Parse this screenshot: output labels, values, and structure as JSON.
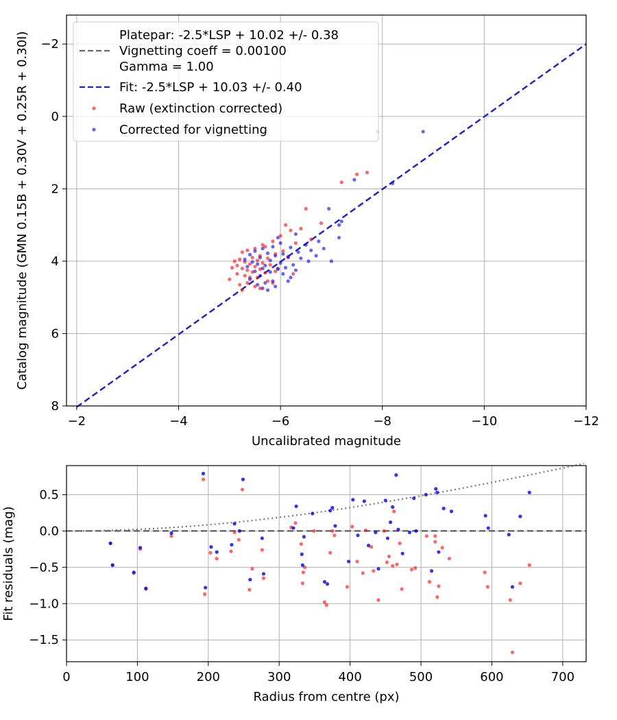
{
  "colors": {
    "raw": "#ff0000",
    "corrected": "#0000ee",
    "fit": "#2222cc",
    "vignetting": "#666666",
    "model": "#777777",
    "grid": "#b0b0b0"
  },
  "chart_data": [
    {
      "type": "scatter",
      "title": "",
      "xlabel": "Uncalibrated magnitude",
      "ylabel": "Catalog magnitude (GMN 0.15B + 0.30V + 0.25R + 0.30I)",
      "xlim": [
        -1.8,
        -12
      ],
      "ylim": [
        8,
        -2.8
      ],
      "xticks": [
        -2,
        -4,
        -6,
        -8,
        -10,
        -12
      ],
      "xtick_labels": [
        "−2",
        "−4",
        "−6",
        "−8",
        "−10",
        "−12"
      ],
      "yticks": [
        -2,
        0,
        2,
        4,
        6,
        8
      ],
      "ytick_labels": [
        "−2",
        "0",
        "2",
        "4",
        "6",
        "8"
      ],
      "grid": true,
      "legend": {
        "position": "top-left",
        "entries": [
          {
            "label": "Platepar: -2.5*LSP + 10.02 +/- 0.38",
            "style": "none"
          },
          {
            "label": "Vignetting coeff = 0.00100",
            "style": "dashed-gray"
          },
          {
            "label": "Gamma = 1.00",
            "style": "none"
          },
          {
            "label": "Fit: -2.5*LSP + 10.03 +/- 0.40",
            "style": "dashed-blue"
          },
          {
            "label": "Raw (extinction corrected)",
            "style": "dot-red"
          },
          {
            "label": "Corrected for vignetting",
            "style": "dot-blue"
          }
        ]
      },
      "lines": [
        {
          "name": "Fit: -2.5*LSP + 10.03 +/- 0.40",
          "x": [
            -2.0,
            -12.0
          ],
          "y": [
            8.03,
            -2.0
          ]
        }
      ],
      "series": [
        {
          "name": "Raw (extinction corrected)",
          "points": [
            [
              -7.9,
              0.42
            ],
            [
              -7.7,
              1.55
            ],
            [
              -7.5,
              1.6
            ],
            [
              -7.2,
              1.82
            ],
            [
              -6.5,
              2.55
            ],
            [
              -6.8,
              2.95
            ],
            [
              -6.1,
              3.0
            ],
            [
              -6.4,
              3.1
            ],
            [
              -6.2,
              3.15
            ],
            [
              -6.0,
              3.3
            ],
            [
              -6.6,
              3.4
            ],
            [
              -5.85,
              3.45
            ],
            [
              -6.3,
              3.5
            ],
            [
              -5.7,
              3.6
            ],
            [
              -5.5,
              3.65
            ],
            [
              -5.35,
              3.7
            ],
            [
              -6.05,
              3.72
            ],
            [
              -5.25,
              3.75
            ],
            [
              -5.9,
              3.8
            ],
            [
              -5.6,
              3.85
            ],
            [
              -5.45,
              3.9
            ],
            [
              -5.75,
              3.92
            ],
            [
              -5.2,
              3.95
            ],
            [
              -5.55,
              3.98
            ],
            [
              -5.1,
              4.0
            ],
            [
              -5.3,
              4.02
            ],
            [
              -5.65,
              4.05
            ],
            [
              -5.4,
              4.08
            ],
            [
              -5.8,
              4.1
            ],
            [
              -5.15,
              4.12
            ],
            [
              -5.5,
              4.15
            ],
            [
              -5.05,
              4.18
            ],
            [
              -5.25,
              4.2
            ],
            [
              -5.6,
              4.22
            ],
            [
              -5.35,
              4.25
            ],
            [
              -5.9,
              4.28
            ],
            [
              -5.45,
              4.3
            ],
            [
              -5.7,
              4.32
            ],
            [
              -5.15,
              4.35
            ],
            [
              -5.3,
              4.4
            ],
            [
              -5.55,
              4.45
            ],
            [
              -5.0,
              4.5
            ],
            [
              -5.75,
              4.55
            ],
            [
              -5.35,
              4.6
            ],
            [
              -5.2,
              4.65
            ],
            [
              -5.5,
              4.7
            ],
            [
              -5.6,
              4.75
            ],
            [
              -5.25,
              4.8
            ],
            [
              -5.4,
              4.45
            ],
            [
              -5.65,
              3.55
            ],
            [
              -6.15,
              3.9
            ],
            [
              -5.95,
              4.2
            ],
            [
              -6.25,
              4.35
            ],
            [
              -5.85,
              4.6
            ]
          ]
        },
        {
          "name": "Corrected for vignetting",
          "points": [
            [
              -8.8,
              0.42
            ],
            [
              -7.45,
              1.75
            ],
            [
              -8.2,
              1.85
            ],
            [
              -6.95,
              2.55
            ],
            [
              -7.2,
              2.9
            ],
            [
              -7.15,
              3.0
            ],
            [
              -6.3,
              3.25
            ],
            [
              -5.95,
              3.35
            ],
            [
              -6.75,
              3.45
            ],
            [
              -6.5,
              3.55
            ],
            [
              -6.0,
              3.5
            ],
            [
              -5.85,
              3.6
            ],
            [
              -6.2,
              3.62
            ],
            [
              -5.65,
              3.65
            ],
            [
              -6.6,
              3.7
            ],
            [
              -5.5,
              3.72
            ],
            [
              -6.35,
              3.75
            ],
            [
              -5.75,
              3.78
            ],
            [
              -6.05,
              3.8
            ],
            [
              -5.4,
              3.82
            ],
            [
              -5.9,
              3.85
            ],
            [
              -6.15,
              3.88
            ],
            [
              -5.6,
              3.9
            ],
            [
              -6.4,
              3.92
            ],
            [
              -5.3,
              3.95
            ],
            [
              -5.8,
              3.98
            ],
            [
              -6.55,
              4.0
            ],
            [
              -5.45,
              4.02
            ],
            [
              -6.0,
              4.05
            ],
            [
              -5.55,
              4.08
            ],
            [
              -6.25,
              4.1
            ],
            [
              -5.7,
              4.12
            ],
            [
              -5.35,
              4.15
            ],
            [
              -6.1,
              4.18
            ],
            [
              -5.65,
              4.2
            ],
            [
              -5.95,
              4.22
            ],
            [
              -6.3,
              4.25
            ],
            [
              -5.5,
              4.28
            ],
            [
              -5.8,
              4.3
            ],
            [
              -6.05,
              4.35
            ],
            [
              -5.6,
              4.4
            ],
            [
              -6.2,
              4.45
            ],
            [
              -5.4,
              4.5
            ],
            [
              -5.85,
              4.55
            ],
            [
              -6.15,
              4.55
            ],
            [
              -5.7,
              4.6
            ],
            [
              -5.55,
              4.65
            ],
            [
              -5.9,
              4.7
            ],
            [
              -5.65,
              4.75
            ],
            [
              -5.75,
              4.8
            ],
            [
              -7.0,
              4.0
            ],
            [
              -7.15,
              3.35
            ],
            [
              -6.7,
              3.85
            ],
            [
              -6.85,
              3.65
            ]
          ]
        }
      ]
    },
    {
      "type": "scatter",
      "title": "",
      "xlabel": "Radius from centre (px)",
      "ylabel": "Fit residuals (mag)",
      "xlim": [
        0,
        733
      ],
      "ylim": [
        -1.8,
        0.9
      ],
      "xticks": [
        0,
        100,
        200,
        300,
        400,
        500,
        600,
        700
      ],
      "xtick_labels": [
        "0",
        "100",
        "200",
        "300",
        "400",
        "500",
        "600",
        "700"
      ],
      "yticks": [
        0.5,
        0.0,
        -0.5,
        -1.0,
        -1.5
      ],
      "ytick_labels": [
        "0.5",
        "0.0",
        "−0.5",
        "−1.0",
        "−1.5"
      ],
      "grid": true,
      "reference_line": {
        "y": 0.0,
        "style": "dashed"
      },
      "vignetting_curve": {
        "coeff": 0.001,
        "x_max": 733
      },
      "series": [
        {
          "name": "Raw",
          "points": [
            [
              62,
              -0.17
            ],
            [
              65,
              -0.47
            ],
            [
              95,
              -0.58
            ],
            [
              104,
              -0.25
            ],
            [
              112,
              -0.8
            ],
            [
              148,
              -0.07
            ],
            [
              193,
              0.71
            ],
            [
              195,
              -0.87
            ],
            [
              203,
              -0.3
            ],
            [
              212,
              -0.38
            ],
            [
              232,
              -0.28
            ],
            [
              237,
              -0.02
            ],
            [
              243,
              -0.12
            ],
            [
              248,
              0.57
            ],
            [
              258,
              -0.81
            ],
            [
              262,
              -0.52
            ],
            [
              276,
              -0.26
            ],
            [
              278,
              -0.65
            ],
            [
              317,
              0.05
            ],
            [
              323,
              0.11
            ],
            [
              331,
              -0.18
            ],
            [
              333,
              -0.72
            ],
            [
              334,
              -0.57
            ],
            [
              336,
              -0.5
            ],
            [
              349,
              0.0
            ],
            [
              364,
              -0.98
            ],
            [
              367,
              -1.02
            ],
            [
              372,
              -0.3
            ],
            [
              375,
              0.0
            ],
            [
              378,
              -0.06
            ],
            [
              396,
              -0.77
            ],
            [
              403,
              0.06
            ],
            [
              410,
              -0.42
            ],
            [
              418,
              -0.58
            ],
            [
              422,
              0.01
            ],
            [
              430,
              -0.22
            ],
            [
              433,
              -0.55
            ],
            [
              440,
              -0.95
            ],
            [
              448,
              0.0
            ],
            [
              452,
              -0.43
            ],
            [
              455,
              -0.35
            ],
            [
              460,
              -0.48
            ],
            [
              462,
              0.27
            ],
            [
              466,
              -0.46
            ],
            [
              470,
              -0.17
            ],
            [
              473,
              -0.8
            ],
            [
              487,
              -0.53
            ],
            [
              492,
              -0.51
            ],
            [
              508,
              -0.07
            ],
            [
              512,
              -0.7
            ],
            [
              520,
              -0.07
            ],
            [
              520,
              -0.15
            ],
            [
              523,
              -0.91
            ],
            [
              525,
              -0.76
            ],
            [
              530,
              -0.23
            ],
            [
              540,
              -0.38
            ],
            [
              590,
              -0.57
            ],
            [
              594,
              -0.77
            ],
            [
              626,
              -0.95
            ],
            [
              629,
              -1.67
            ],
            [
              640,
              -0.72
            ],
            [
              653,
              -0.47
            ]
          ]
        },
        {
          "name": "Corrected",
          "points": [
            [
              62,
              -0.17
            ],
            [
              65,
              -0.47
            ],
            [
              95,
              -0.57
            ],
            [
              104,
              -0.23
            ],
            [
              112,
              -0.79
            ],
            [
              148,
              -0.03
            ],
            [
              193,
              0.79
            ],
            [
              196,
              -0.78
            ],
            [
              204,
              -0.22
            ],
            [
              212,
              -0.29
            ],
            [
              233,
              -0.19
            ],
            [
              237,
              0.1
            ],
            [
              244,
              0.0
            ],
            [
              249,
              0.71
            ],
            [
              259,
              -0.67
            ],
            [
              276,
              -0.1
            ],
            [
              278,
              -0.59
            ],
            [
              320,
              0.04
            ],
            [
              324,
              0.34
            ],
            [
              332,
              -0.32
            ],
            [
              333,
              -0.47
            ],
            [
              335,
              -0.08
            ],
            [
              347,
              0.24
            ],
            [
              364,
              -0.7
            ],
            [
              368,
              -0.73
            ],
            [
              372,
              0.28
            ],
            [
              375,
              0.32
            ],
            [
              379,
              0.07
            ],
            [
              398,
              -0.42
            ],
            [
              404,
              0.43
            ],
            [
              411,
              -0.06
            ],
            [
              420,
              0.41
            ],
            [
              426,
              -0.2
            ],
            [
              436,
              -0.02
            ],
            [
              440,
              -0.52
            ],
            [
              450,
              0.42
            ],
            [
              453,
              -0.1
            ],
            [
              457,
              0.12
            ],
            [
              460,
              0.33
            ],
            [
              465,
              0.77
            ],
            [
              468,
              0.02
            ],
            [
              474,
              -0.31
            ],
            [
              484,
              -0.02
            ],
            [
              490,
              0.45
            ],
            [
              493,
              0.0
            ],
            [
              507,
              0.5
            ],
            [
              515,
              -0.55
            ],
            [
              521,
              0.58
            ],
            [
              523,
              0.53
            ],
            [
              525,
              -0.29
            ],
            [
              532,
              0.31
            ],
            [
              543,
              0.27
            ],
            [
              591,
              0.21
            ],
            [
              595,
              0.04
            ],
            [
              624,
              -0.05
            ],
            [
              629,
              -0.77
            ],
            [
              640,
              0.2
            ],
            [
              653,
              0.53
            ]
          ]
        }
      ]
    }
  ]
}
